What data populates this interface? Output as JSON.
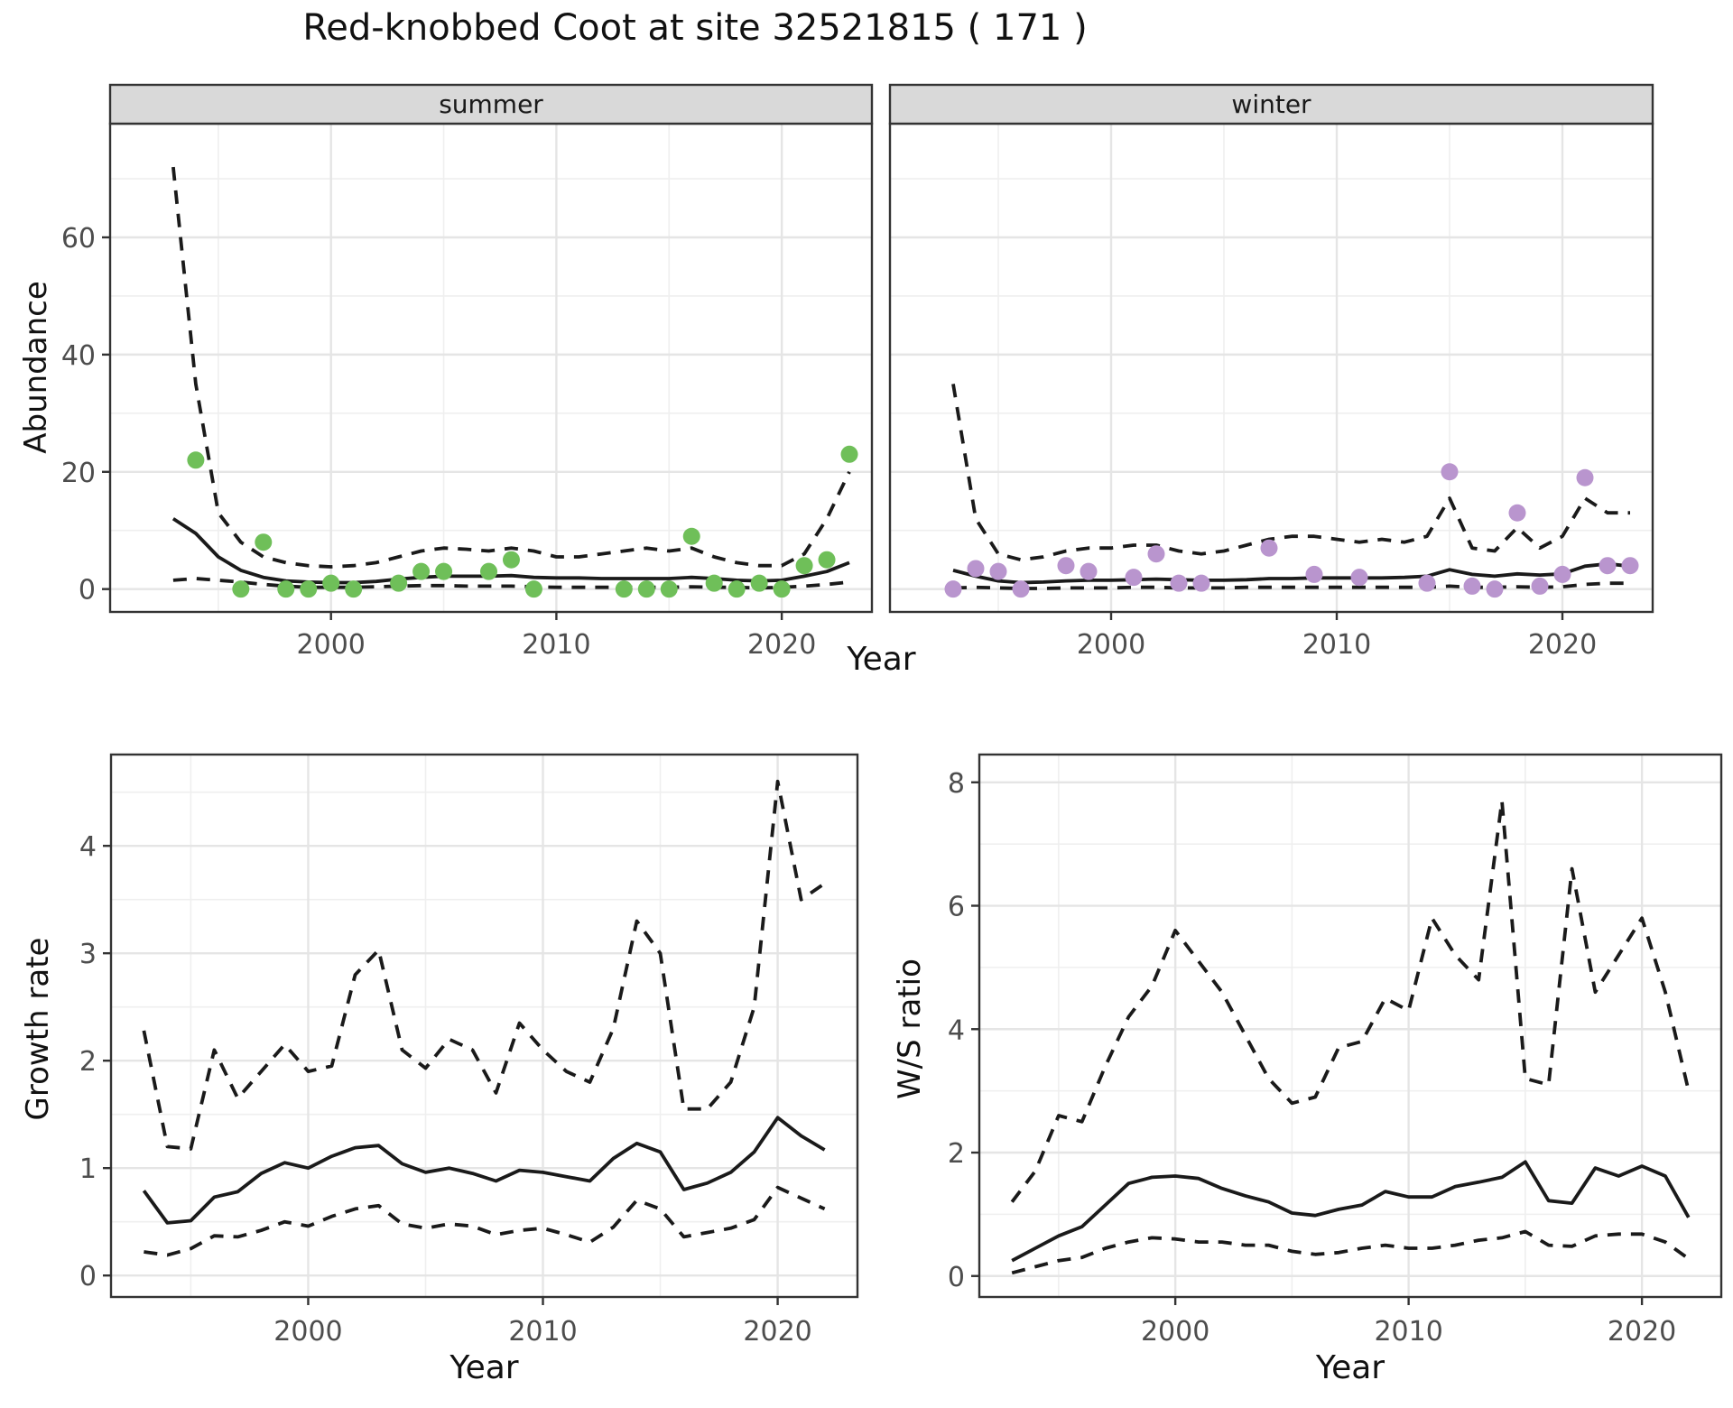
{
  "title": "Red-knobbed Coot at site 32521815 ( 171 )",
  "top_row": {
    "xlabel": "Year"
  },
  "colors": {
    "line": "#1a1a1a",
    "grid_major": "#e5e5e5",
    "grid_minor": "#efefef",
    "panel_border": "#333333",
    "strip_bg": "#d9d9d9",
    "tick_label": "#4d4d4d",
    "point_summer": "#6fbf59",
    "point_winter": "#b995ce"
  },
  "chart_data": [
    {
      "id": "abundance-summer",
      "type": "scatter",
      "facet_label": "summer",
      "ylabel": "Abundance",
      "xlabel": "Year",
      "xlim": [
        1990.2,
        2024.0
      ],
      "ylim": [
        -3.9,
        79.4
      ],
      "x_ticks": [
        2000,
        2010,
        2020
      ],
      "x_minor": [
        1995,
        2005,
        2015
      ],
      "y_ticks": [
        0,
        20,
        40,
        60
      ],
      "y_minor": [
        10,
        30,
        50,
        70
      ],
      "show_y_labels": true,
      "point_color": "#6fbf59",
      "points": {
        "x": [
          1994,
          1996,
          1997,
          1998,
          1999,
          2000,
          2001,
          2003,
          2004,
          2005,
          2007,
          2008,
          2009,
          2013,
          2014,
          2015,
          2016,
          2017,
          2018,
          2019,
          2020,
          2021,
          2022,
          2023
        ],
        "y": [
          22,
          0,
          8,
          0,
          0,
          1,
          0,
          1,
          3,
          3,
          3,
          5,
          0,
          0,
          0,
          0,
          9,
          1,
          0,
          1,
          0,
          4,
          5,
          23
        ]
      },
      "line_years": [
        1993,
        1994,
        1995,
        1996,
        1997,
        1998,
        1999,
        2000,
        2001,
        2002,
        2003,
        2004,
        2005,
        2006,
        2007,
        2008,
        2009,
        2010,
        2011,
        2012,
        2013,
        2014,
        2015,
        2016,
        2017,
        2018,
        2019,
        2020,
        2021,
        2022,
        2023
      ],
      "series": [
        {
          "name": "fit",
          "style": "solid",
          "values": [
            12,
            9.5,
            5.5,
            3.2,
            2,
            1.4,
            1.2,
            1.1,
            1.1,
            1.3,
            1.7,
            2,
            2.2,
            2.2,
            2.2,
            2.3,
            2,
            1.9,
            1.9,
            1.8,
            1.8,
            1.8,
            1.8,
            2,
            1.8,
            1.5,
            1.4,
            1.5,
            2.2,
            3,
            4.5
          ]
        },
        {
          "name": "upper-ci",
          "style": "dashed",
          "values": [
            72,
            35,
            13,
            8,
            5.5,
            4.5,
            4,
            3.8,
            4,
            4.5,
            5.5,
            6.5,
            7,
            6.8,
            6.5,
            7,
            6.5,
            5.5,
            5.5,
            6,
            6.5,
            7,
            6.5,
            7,
            5.5,
            4.5,
            4,
            4,
            6,
            12,
            20
          ]
        },
        {
          "name": "lower-ci",
          "style": "dashed",
          "values": [
            1.5,
            1.8,
            1.5,
            1.2,
            0.8,
            0.5,
            0.3,
            0.3,
            0.3,
            0.4,
            0.5,
            0.6,
            0.6,
            0.5,
            0.5,
            0.5,
            0.4,
            0.3,
            0.3,
            0.3,
            0.3,
            0.3,
            0.3,
            0.4,
            0.3,
            0.3,
            0.2,
            0.3,
            0.5,
            0.8,
            1.2
          ]
        }
      ]
    },
    {
      "id": "abundance-winter",
      "type": "scatter",
      "facet_label": "winter",
      "xlabel": "Year",
      "xlim": [
        1990.2,
        2024.0
      ],
      "ylim": [
        -3.9,
        79.4
      ],
      "x_ticks": [
        2000,
        2010,
        2020
      ],
      "x_minor": [
        1995,
        2005,
        2015
      ],
      "y_ticks": [
        0,
        20,
        40,
        60
      ],
      "y_minor": [
        10,
        30,
        50,
        70
      ],
      "show_y_labels": false,
      "point_color": "#b995ce",
      "points": {
        "x": [
          1993,
          1994,
          1995,
          1996,
          1998,
          1999,
          2001,
          2002,
          2003,
          2004,
          2007,
          2009,
          2011,
          2014,
          2015,
          2016,
          2017,
          2018,
          2019,
          2020,
          2021,
          2022,
          2023
        ],
        "y": [
          0,
          3.5,
          3,
          0,
          4,
          3,
          2,
          6,
          1,
          1,
          7,
          2.5,
          2,
          1,
          20,
          0.5,
          0,
          13,
          0.5,
          2.5,
          19,
          4,
          4
        ]
      },
      "line_years": [
        1993,
        1994,
        1995,
        1996,
        1997,
        1998,
        1999,
        2000,
        2001,
        2002,
        2003,
        2004,
        2005,
        2006,
        2007,
        2008,
        2009,
        2010,
        2011,
        2012,
        2013,
        2014,
        2015,
        2016,
        2017,
        2018,
        2019,
        2020,
        2021,
        2022,
        2023
      ],
      "series": [
        {
          "name": "fit",
          "style": "solid",
          "values": [
            3.2,
            2.2,
            1.4,
            1.1,
            1.2,
            1.4,
            1.5,
            1.5,
            1.6,
            1.7,
            1.6,
            1.5,
            1.5,
            1.6,
            1.8,
            1.8,
            1.9,
            1.9,
            1.9,
            1.9,
            2,
            2.2,
            3.3,
            2.5,
            2.2,
            2.6,
            2.4,
            2.6,
            3.9,
            4.3,
            3.9
          ]
        },
        {
          "name": "upper-ci",
          "style": "dashed",
          "values": [
            35,
            12,
            6,
            5,
            5.5,
            6.5,
            7,
            7,
            7.5,
            7.5,
            6.5,
            6,
            6.5,
            7.5,
            8.5,
            9,
            9,
            8.5,
            8,
            8.5,
            8,
            9,
            15.5,
            7,
            6.5,
            10.5,
            7,
            9,
            15.5,
            13,
            13
          ]
        },
        {
          "name": "lower-ci",
          "style": "dashed",
          "values": [
            0.2,
            0.3,
            0.2,
            0.1,
            0.1,
            0.2,
            0.2,
            0.2,
            0.3,
            0.3,
            0.2,
            0.2,
            0.2,
            0.3,
            0.3,
            0.3,
            0.3,
            0.3,
            0.3,
            0.3,
            0.3,
            0.3,
            0.5,
            0.3,
            0.3,
            0.4,
            0.3,
            0.4,
            0.8,
            1,
            1
          ]
        }
      ]
    },
    {
      "id": "growth-rate",
      "type": "line",
      "ylabel": "Growth rate",
      "xlabel": "Year",
      "xlim": [
        1991.6,
        2023.4
      ],
      "ylim": [
        -0.2,
        4.85
      ],
      "x_ticks": [
        2000,
        2010,
        2020
      ],
      "x_minor": [
        1995,
        2005,
        2015
      ],
      "y_ticks": [
        0,
        1,
        2,
        3,
        4
      ],
      "y_minor": [
        0.5,
        1.5,
        2.5,
        3.5,
        4.5
      ],
      "show_y_labels": true,
      "line_years": [
        1993,
        1994,
        1995,
        1996,
        1997,
        1998,
        1999,
        2000,
        2001,
        2002,
        2003,
        2004,
        2005,
        2006,
        2007,
        2008,
        2009,
        2010,
        2011,
        2012,
        2013,
        2014,
        2015,
        2016,
        2017,
        2018,
        2019,
        2020,
        2021,
        2022
      ],
      "series": [
        {
          "name": "fit",
          "style": "solid",
          "values": [
            0.79,
            0.49,
            0.51,
            0.73,
            0.78,
            0.95,
            1.05,
            1.0,
            1.11,
            1.19,
            1.21,
            1.04,
            0.96,
            1.0,
            0.95,
            0.88,
            0.98,
            0.96,
            0.92,
            0.88,
            1.09,
            1.23,
            1.15,
            0.8,
            0.86,
            0.96,
            1.15,
            1.47,
            1.3,
            1.17
          ]
        },
        {
          "name": "upper-ci",
          "style": "dashed",
          "values": [
            2.28,
            1.2,
            1.18,
            2.1,
            1.65,
            1.9,
            2.15,
            1.9,
            1.95,
            2.8,
            3.03,
            2.1,
            1.93,
            2.2,
            2.1,
            1.7,
            2.35,
            2.1,
            1.9,
            1.8,
            2.3,
            3.3,
            3.0,
            1.55,
            1.55,
            1.8,
            2.5,
            4.6,
            3.5,
            3.65
          ]
        },
        {
          "name": "lower-ci",
          "style": "dashed",
          "values": [
            0.22,
            0.19,
            0.25,
            0.37,
            0.36,
            0.42,
            0.5,
            0.46,
            0.55,
            0.62,
            0.65,
            0.48,
            0.44,
            0.48,
            0.46,
            0.38,
            0.42,
            0.44,
            0.38,
            0.31,
            0.45,
            0.7,
            0.62,
            0.36,
            0.4,
            0.44,
            0.52,
            0.82,
            0.72,
            0.62
          ]
        }
      ]
    },
    {
      "id": "ws-ratio",
      "type": "line",
      "ylabel": "W/S ratio",
      "xlabel": "Year",
      "xlim": [
        1991.6,
        2023.4
      ],
      "ylim": [
        -0.34,
        8.45
      ],
      "x_ticks": [
        2000,
        2010,
        2020
      ],
      "x_minor": [
        1995,
        2005,
        2015
      ],
      "y_ticks": [
        0,
        2,
        4,
        6,
        8
      ],
      "y_minor": [
        1,
        3,
        5,
        7
      ],
      "show_y_labels": true,
      "line_years": [
        1993,
        1994,
        1995,
        1996,
        1997,
        1998,
        1999,
        2000,
        2001,
        2002,
        2003,
        2004,
        2005,
        2006,
        2007,
        2008,
        2009,
        2010,
        2011,
        2012,
        2013,
        2014,
        2015,
        2016,
        2017,
        2018,
        2019,
        2020,
        2021,
        2022
      ],
      "series": [
        {
          "name": "fit",
          "style": "solid",
          "values": [
            0.25,
            0.45,
            0.65,
            0.8,
            1.15,
            1.5,
            1.6,
            1.62,
            1.58,
            1.42,
            1.3,
            1.2,
            1.02,
            0.98,
            1.08,
            1.15,
            1.37,
            1.28,
            1.28,
            1.45,
            1.52,
            1.6,
            1.85,
            1.22,
            1.18,
            1.75,
            1.62,
            1.78,
            1.62,
            0.95
          ]
        },
        {
          "name": "upper-ci",
          "style": "dashed",
          "values": [
            1.2,
            1.7,
            2.6,
            2.5,
            3.4,
            4.2,
            4.7,
            5.6,
            5.1,
            4.6,
            3.9,
            3.2,
            2.8,
            2.9,
            3.7,
            3.8,
            4.5,
            4.3,
            5.8,
            5.2,
            4.8,
            7.7,
            3.2,
            3.1,
            6.6,
            4.6,
            5.2,
            5.8,
            4.6,
            3.0
          ]
        },
        {
          "name": "lower-ci",
          "style": "dashed",
          "values": [
            0.05,
            0.15,
            0.25,
            0.3,
            0.45,
            0.55,
            0.62,
            0.6,
            0.55,
            0.55,
            0.5,
            0.5,
            0.4,
            0.35,
            0.38,
            0.45,
            0.5,
            0.45,
            0.45,
            0.5,
            0.58,
            0.62,
            0.72,
            0.5,
            0.48,
            0.65,
            0.68,
            0.68,
            0.55,
            0.28
          ]
        }
      ]
    }
  ]
}
